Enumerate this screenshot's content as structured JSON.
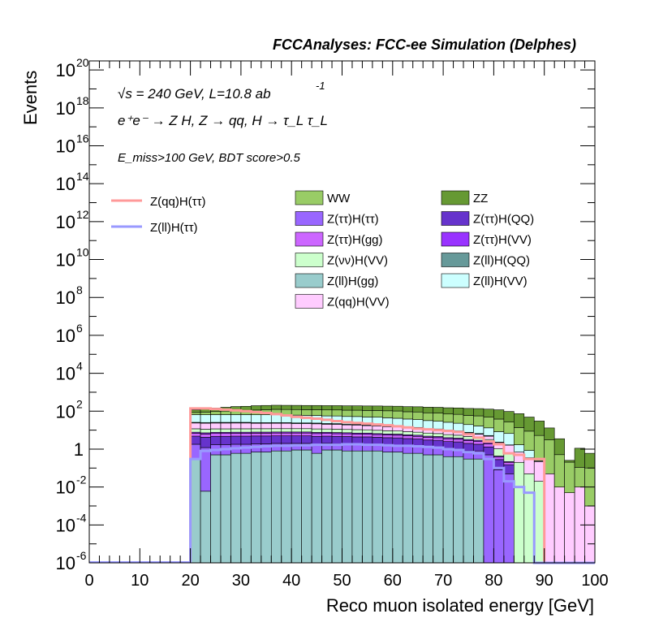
{
  "chart_data": {
    "type": "histogram",
    "title": "FCCAnalyses: FCC-ee Simulation (Delphes)",
    "annotations": {
      "energy": "√s = 240 GeV, L=10.8 ab",
      "energy_exp": "-1",
      "process": "e⁺e⁻ → Z H, Z → qq, H → τ_L τ_L",
      "cuts": "E_miss>100 GeV, BDT score>0.5"
    },
    "xlabel": "Reco muon isolated energy [GeV]",
    "ylabel": "Events",
    "xlim": [
      0,
      100
    ],
    "ylim": [
      1e-06,
      3e+20
    ],
    "yscale": "log",
    "bin_width": 2,
    "x_ticks": [
      "0",
      "10",
      "20",
      "30",
      "40",
      "50",
      "60",
      "70",
      "80",
      "90",
      "100"
    ],
    "y_ticks": [
      {
        "base": "10",
        "exp": "-6",
        "value": 1e-06
      },
      {
        "base": "10",
        "exp": "-4",
        "value": 0.0001
      },
      {
        "base": "10",
        "exp": "-2",
        "value": 0.01
      },
      {
        "base": "1",
        "exp": "",
        "value": 1
      },
      {
        "base": "10",
        "exp": "2",
        "value": 100.0
      },
      {
        "base": "10",
        "exp": "4",
        "value": 10000.0
      },
      {
        "base": "10",
        "exp": "6",
        "value": 1000000.0
      },
      {
        "base": "10",
        "exp": "8",
        "value": 100000000.0
      },
      {
        "base": "10",
        "exp": "10",
        "value": 10000000000.0
      },
      {
        "base": "10",
        "exp": "12",
        "value": 1000000000000.0
      },
      {
        "base": "10",
        "exp": "14",
        "value": 100000000000000.0
      },
      {
        "base": "10",
        "exp": "16",
        "value": 1e+16
      },
      {
        "base": "10",
        "exp": "18",
        "value": 1e+18
      },
      {
        "base": "10",
        "exp": "20",
        "value": 1e+20
      }
    ],
    "bin_edges": [
      20,
      22,
      24,
      26,
      28,
      30,
      32,
      34,
      36,
      38,
      40,
      42,
      44,
      46,
      48,
      50,
      52,
      54,
      56,
      58,
      60,
      62,
      64,
      66,
      68,
      70,
      72,
      74,
      76,
      78,
      80,
      82,
      84,
      86,
      88,
      90,
      92,
      94,
      96,
      98,
      100
    ],
    "stack_order_bottom_to_top": [
      "Z(ll)H(gg)",
      "Z(ττ)H(ττ)",
      "Z(ττ)H(QQ)",
      "Z(ττ)H(gg)",
      "Z(ττ)H(VV)",
      "Z(νν)H(VV)",
      "Z(qq)H(VV)",
      "Z(ll)H(QQ)",
      "Z(ll)H(VV)",
      "WW",
      "ZZ"
    ],
    "stack_series": [
      {
        "name": "Z(ll)H(gg)",
        "color": "#99cccc",
        "values": [
          0.3,
          0.006,
          0.5,
          0.5,
          0.6,
          0.6,
          0.7,
          0.7,
          0.8,
          0.8,
          0.9,
          0.9,
          0.6,
          0.9,
          0.9,
          0.8,
          0.8,
          0.8,
          0.8,
          0.7,
          0.7,
          0.6,
          0.6,
          0.5,
          0.5,
          0.4,
          0.4,
          0.3,
          0.3,
          0.0,
          0,
          0,
          0,
          0,
          0,
          0,
          0,
          0,
          0,
          0
        ]
      },
      {
        "name": "Z(ττ)H(ττ)",
        "color": "#9966ff",
        "values": [
          1.5,
          1.2,
          1.2,
          1.2,
          1.2,
          1.2,
          1.2,
          1.2,
          1.2,
          1.2,
          1.1,
          1.1,
          1.1,
          1.1,
          1.0,
          1.0,
          1.0,
          1.0,
          0.9,
          0.9,
          0.9,
          0.8,
          0.8,
          0.7,
          0.7,
          0.6,
          0.6,
          0.5,
          0.5,
          0.5,
          0.08,
          0.05,
          0,
          0,
          0,
          0,
          0,
          0,
          0,
          0
        ]
      },
      {
        "name": "Z(ττ)H(QQ)",
        "color": "#6633cc",
        "values": [
          3,
          3,
          3,
          3,
          3,
          3,
          3,
          3,
          3,
          3,
          3,
          3,
          3,
          2.8,
          2.8,
          2.8,
          2.6,
          2.6,
          2.5,
          2.4,
          2.3,
          2.2,
          2.0,
          1.8,
          1.7,
          1.5,
          1.4,
          1.2,
          1.0,
          0.8,
          0.2,
          0.1,
          0,
          0,
          0,
          0,
          0,
          0,
          0,
          0
        ]
      },
      {
        "name": "Z(ττ)H(gg)",
        "color": "#cc66ff",
        "values": [
          2,
          2,
          2,
          2,
          2,
          2,
          2,
          2,
          2,
          2,
          2,
          2,
          1.9,
          1.9,
          1.8,
          1.8,
          1.7,
          1.7,
          1.6,
          1.5,
          1.5,
          1.4,
          1.3,
          1.2,
          1.1,
          1.0,
          0.9,
          0.8,
          0.7,
          0.6,
          0.1,
          0.05,
          0,
          0,
          0,
          0,
          0,
          0,
          0,
          0
        ]
      },
      {
        "name": "Z(ττ)H(VV)",
        "color": "#9933ff",
        "values": [
          1,
          1,
          1,
          1,
          1,
          1,
          1,
          1,
          1,
          1,
          1,
          1,
          1,
          1,
          1,
          0.9,
          0.9,
          0.9,
          0.8,
          0.8,
          0.8,
          0.7,
          0.7,
          0.6,
          0.6,
          0.5,
          0.5,
          0.4,
          0.4,
          0.3,
          0.05,
          0.02,
          0,
          0,
          0,
          0,
          0,
          0,
          0,
          0
        ]
      },
      {
        "name": "Z(νν)H(VV)",
        "color": "#ccffcc",
        "values": [
          4,
          4,
          4,
          4,
          4,
          4,
          4,
          4,
          4,
          4,
          4,
          4,
          4,
          3.8,
          3.8,
          3.6,
          3.6,
          3.4,
          3.2,
          3.0,
          2.8,
          2.6,
          2.4,
          2.2,
          2.0,
          1.8,
          1.6,
          1.4,
          1.2,
          1.0,
          0.6,
          0.4,
          0.2,
          0.05,
          0.02,
          0,
          0,
          0,
          0,
          0
        ]
      },
      {
        "name": "Z(qq)H(VV)",
        "color": "#ffccff",
        "values": [
          12,
          12,
          12,
          12,
          12,
          12,
          11,
          11,
          11,
          11,
          10,
          10,
          10,
          9,
          9,
          8,
          8,
          7,
          7,
          6,
          6,
          5,
          5,
          4,
          4,
          3.5,
          3,
          2.5,
          2,
          1.6,
          1.2,
          1.0,
          0.5,
          0.3,
          0.2,
          0.05,
          0.01,
          0.005,
          0.01,
          0.001
        ]
      },
      {
        "name": "Z(ll)H(QQ)",
        "color": "#669999",
        "values": [
          2,
          2,
          2,
          2,
          2,
          2,
          2,
          2,
          2,
          2,
          2,
          2,
          2,
          2,
          1.8,
          1.8,
          1.7,
          1.6,
          1.5,
          1.4,
          1.3,
          1.2,
          1.1,
          1.0,
          0.9,
          0.8,
          0.7,
          0.6,
          0.5,
          0.4,
          0.1,
          0.05,
          0,
          0,
          0,
          0,
          0,
          0,
          0,
          0
        ]
      },
      {
        "name": "Z(ll)H(VV)",
        "color": "#ccffff",
        "values": [
          40,
          40,
          40,
          40,
          40,
          40,
          40,
          40,
          40,
          38,
          38,
          36,
          36,
          34,
          34,
          32,
          32,
          30,
          30,
          28,
          26,
          24,
          22,
          20,
          18,
          16,
          14,
          12,
          10,
          8,
          6,
          5,
          1,
          0.5,
          0.02,
          0,
          0,
          0,
          0,
          0
        ]
      },
      {
        "name": "WW",
        "color": "#99cc66",
        "values": [
          20,
          25,
          30,
          35,
          40,
          45,
          50,
          55,
          60,
          60,
          60,
          60,
          60,
          60,
          60,
          60,
          60,
          60,
          60,
          60,
          60,
          55,
          55,
          50,
          50,
          45,
          45,
          40,
          40,
          35,
          30,
          20,
          12,
          8,
          5,
          3,
          0.5,
          0.2,
          0.1,
          0.1
        ]
      },
      {
        "name": "ZZ",
        "color": "#669933",
        "values": [
          30,
          40,
          50,
          60,
          70,
          70,
          80,
          80,
          80,
          80,
          80,
          80,
          80,
          80,
          80,
          80,
          80,
          80,
          80,
          80,
          80,
          80,
          80,
          80,
          80,
          80,
          80,
          80,
          80,
          80,
          80,
          70,
          60,
          40,
          25,
          10,
          3,
          0.05,
          1,
          0.5
        ]
      }
    ],
    "line_series": [
      {
        "name": "Z(qq)H(ττ)",
        "color": "#ff9999",
        "values": [
          140,
          140,
          130,
          120,
          110,
          100,
          90,
          80,
          70,
          60,
          50,
          45,
          40,
          35,
          30,
          26,
          24,
          22,
          20,
          18,
          16,
          14,
          12,
          11,
          10,
          9,
          8,
          6,
          4,
          2.5,
          1.8,
          0.6,
          0.5,
          0.3,
          0.3,
          0,
          0,
          0,
          0,
          0
        ]
      },
      {
        "name": "Z(ll)H(ττ)",
        "color": "#9999ff",
        "values": [
          0.3,
          0.8,
          0.9,
          1.0,
          1.1,
          1.2,
          1.3,
          1.4,
          1.5,
          1.5,
          1.6,
          1.6,
          1.7,
          1.7,
          1.7,
          1.8,
          1.8,
          1.7,
          1.7,
          1.6,
          1.5,
          1.5,
          1.4,
          1.3,
          1.2,
          1.0,
          0.9,
          0.7,
          0.6,
          0.3,
          0.1,
          0.02,
          0.01,
          0.005,
          0,
          0,
          0,
          0,
          0,
          0
        ]
      }
    ],
    "legend": {
      "placement": "top",
      "lines": [
        "Z(qq)H(ττ)",
        "Z(ll)H(ττ)"
      ],
      "boxes_col1": [
        "WW",
        "Z(ττ)H(ττ)",
        "Z(ττ)H(gg)",
        "Z(νν)H(VV)",
        "Z(ll)H(gg)",
        "Z(qq)H(VV)"
      ],
      "boxes_col2": [
        "ZZ",
        "Z(ττ)H(QQ)",
        "Z(ττ)H(VV)",
        "Z(ll)H(QQ)",
        "Z(ll)H(VV)"
      ]
    }
  }
}
